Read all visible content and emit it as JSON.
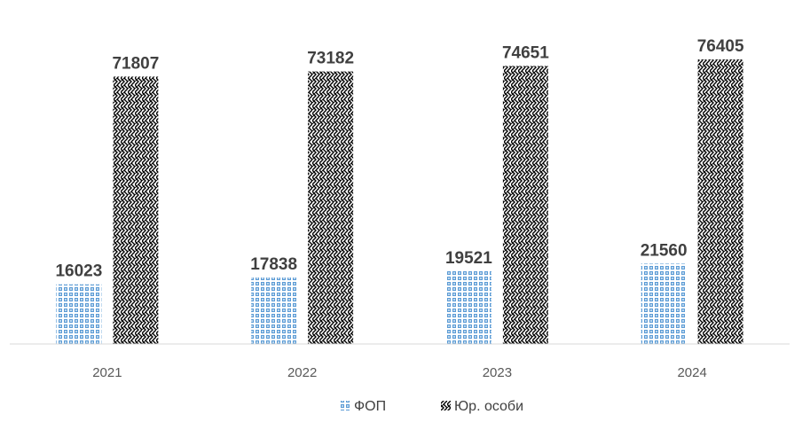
{
  "chart_data": {
    "type": "bar",
    "title": "",
    "xlabel": "",
    "ylabel": "",
    "categories": [
      "2021",
      "2022",
      "2023",
      "2024"
    ],
    "series": [
      {
        "name": "ФОП",
        "values": [
          16023,
          17838,
          19521,
          21560
        ],
        "color": "#5b9bd5",
        "pattern": "dotted-grid"
      },
      {
        "name": "Юр. особи",
        "values": [
          71807,
          73182,
          74651,
          76405
        ],
        "color": "#000000",
        "pattern": "zigzag-weave"
      }
    ],
    "ylim": [
      0,
      90000
    ],
    "grid": false,
    "y_axis_visible": false,
    "legend_position": "bottom"
  }
}
